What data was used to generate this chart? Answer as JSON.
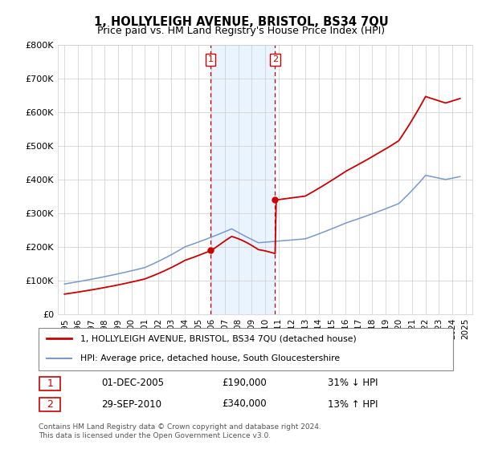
{
  "title": "1, HOLLYLEIGH AVENUE, BRISTOL, BS34 7QU",
  "subtitle": "Price paid vs. HM Land Registry's House Price Index (HPI)",
  "legend_line1": "1, HOLLYLEIGH AVENUE, BRISTOL, BS34 7QU (detached house)",
  "legend_line2": "HPI: Average price, detached house, South Gloucestershire",
  "sale1_date": "01-DEC-2005",
  "sale1_price": "£190,000",
  "sale1_hpi": "31% ↓ HPI",
  "sale2_date": "29-SEP-2010",
  "sale2_price": "£340,000",
  "sale2_hpi": "13% ↑ HPI",
  "footnote1": "Contains HM Land Registry data © Crown copyright and database right 2024.",
  "footnote2": "This data is licensed under the Open Government Licence v3.0.",
  "red_color": "#cc0000",
  "blue_color": "#7799cc",
  "sale1_x": 2005.92,
  "sale1_y": 190000,
  "sale2_x": 2010.75,
  "sale2_y": 340000,
  "ylim": [
    0,
    800000
  ],
  "xlim_start": 1994.5,
  "xlim_end": 2025.5,
  "xticks": [
    1995,
    1996,
    1997,
    1998,
    1999,
    2000,
    2001,
    2002,
    2003,
    2004,
    2005,
    2006,
    2007,
    2008,
    2009,
    2010,
    2011,
    2012,
    2013,
    2014,
    2015,
    2016,
    2017,
    2018,
    2019,
    2020,
    2021,
    2022,
    2023,
    2024,
    2025
  ],
  "yticks": [
    0,
    100000,
    200000,
    300000,
    400000,
    500000,
    600000,
    700000,
    800000
  ]
}
